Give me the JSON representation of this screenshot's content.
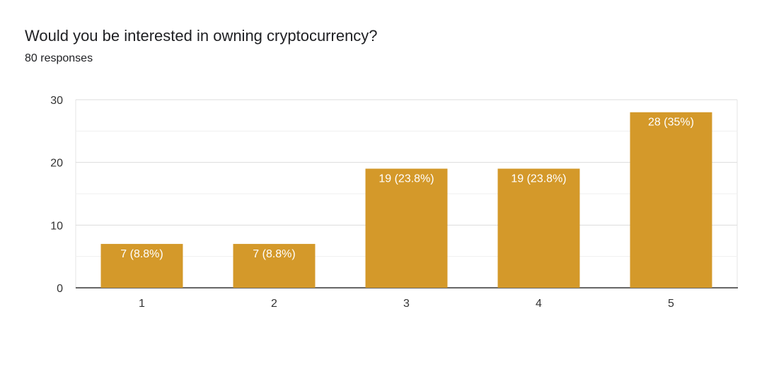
{
  "chart_data": {
    "type": "bar",
    "title": "Would you be interested in owning cryptocurrency?",
    "subtitle": "80 responses",
    "categories": [
      "1",
      "2",
      "3",
      "4",
      "5"
    ],
    "values": [
      7,
      7,
      19,
      19,
      28
    ],
    "data_labels": [
      "7 (8.8%)",
      "7 (8.8%)",
      "19 (23.8%)",
      "19 (23.8%)",
      "28 (35%)"
    ],
    "ylim": [
      0,
      30
    ],
    "yticks": [
      0,
      10,
      20,
      30
    ],
    "grid": true,
    "bar_color": "#d4992a"
  }
}
